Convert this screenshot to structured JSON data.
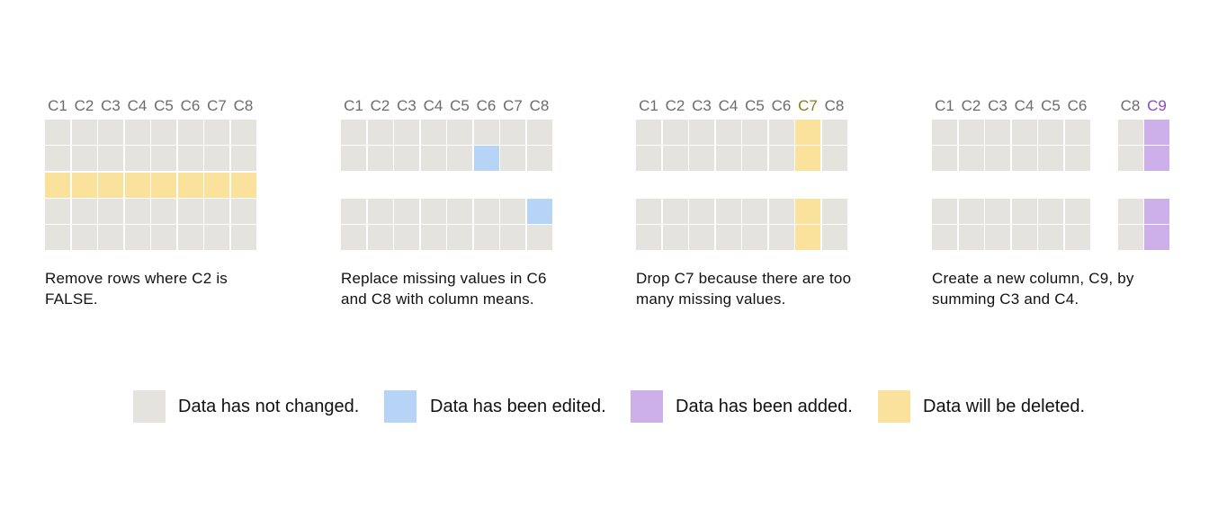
{
  "colors": {
    "unchanged": "#e4e3de",
    "edited": "#b6d4f5",
    "added": "#cdb0ea",
    "deleted": "#fbe29c",
    "header_default": "#6b6b6b",
    "header_deleted": "#8a7a20",
    "header_added": "#8a4bbf"
  },
  "panels": [
    {
      "id": "remove-rows",
      "headers": [
        "C1",
        "C2",
        "C3",
        "C4",
        "C5",
        "C6",
        "C7",
        "C8"
      ],
      "header_states": [
        "u",
        "u",
        "u",
        "u",
        "u",
        "u",
        "u",
        "u"
      ],
      "caption": "Remove rows where C2 is FALSE.",
      "rows": [
        [
          "u",
          "u",
          "u",
          "u",
          "u",
          "u",
          "u",
          "u"
        ],
        [
          "u",
          "u",
          "u",
          "u",
          "u",
          "u",
          "u",
          "u"
        ],
        [
          "d",
          "d",
          "d",
          "d",
          "d",
          "d",
          "d",
          "d"
        ],
        [
          "u",
          "u",
          "u",
          "u",
          "u",
          "u",
          "u",
          "u"
        ],
        [
          "u",
          "u",
          "u",
          "u",
          "u",
          "u",
          "u",
          "u"
        ]
      ]
    },
    {
      "id": "replace-missing",
      "headers": [
        "C1",
        "C2",
        "C3",
        "C4",
        "C5",
        "C6",
        "C7",
        "C8"
      ],
      "header_states": [
        "u",
        "u",
        "u",
        "u",
        "u",
        "u",
        "u",
        "u"
      ],
      "caption": "Replace missing values in C6 and C8 with column means.",
      "rows": [
        [
          "u",
          "u",
          "u",
          "u",
          "u",
          "u",
          "u",
          "u"
        ],
        [
          "u",
          "u",
          "u",
          "u",
          "u",
          "e",
          "u",
          "u"
        ],
        [
          "_",
          "_",
          "_",
          "_",
          "_",
          "_",
          "_",
          "_"
        ],
        [
          "u",
          "u",
          "u",
          "u",
          "u",
          "u",
          "u",
          "e"
        ],
        [
          "u",
          "u",
          "u",
          "u",
          "u",
          "u",
          "u",
          "u"
        ]
      ]
    },
    {
      "id": "drop-column",
      "headers": [
        "C1",
        "C2",
        "C3",
        "C4",
        "C5",
        "C6",
        "C7",
        "C8"
      ],
      "header_states": [
        "u",
        "u",
        "u",
        "u",
        "u",
        "u",
        "d",
        "u"
      ],
      "caption": "Drop C7 because there are too many missing values.",
      "rows": [
        [
          "u",
          "u",
          "u",
          "u",
          "u",
          "u",
          "d",
          "u"
        ],
        [
          "u",
          "u",
          "u",
          "u",
          "u",
          "u",
          "d",
          "u"
        ],
        [
          "_",
          "_",
          "_",
          "_",
          "_",
          "_",
          "_",
          "_"
        ],
        [
          "u",
          "u",
          "u",
          "u",
          "u",
          "u",
          "d",
          "u"
        ],
        [
          "u",
          "u",
          "u",
          "u",
          "u",
          "u",
          "d",
          "u"
        ]
      ]
    },
    {
      "id": "create-column",
      "headers": [
        "C1",
        "C2",
        "C3",
        "C4",
        "C5",
        "C6",
        "",
        "C8",
        "C9"
      ],
      "header_states": [
        "u",
        "u",
        "u",
        "u",
        "u",
        "u",
        "_",
        "u",
        "a"
      ],
      "caption": "Create a new column, C9, by summing C3 and C4.",
      "rows": [
        [
          "u",
          "u",
          "u",
          "u",
          "u",
          "u",
          "_",
          "u",
          "a"
        ],
        [
          "u",
          "u",
          "u",
          "u",
          "u",
          "u",
          "_",
          "u",
          "a"
        ],
        [
          "_",
          "_",
          "_",
          "_",
          "_",
          "_",
          "_",
          "_",
          "_"
        ],
        [
          "u",
          "u",
          "u",
          "u",
          "u",
          "u",
          "_",
          "u",
          "a"
        ],
        [
          "u",
          "u",
          "u",
          "u",
          "u",
          "u",
          "_",
          "u",
          "a"
        ]
      ]
    }
  ],
  "legend": [
    {
      "state": "u",
      "label": "Data has not changed."
    },
    {
      "state": "e",
      "label": "Data has been edited."
    },
    {
      "state": "a",
      "label": "Data has been added."
    },
    {
      "state": "d",
      "label": "Data will be deleted."
    }
  ]
}
